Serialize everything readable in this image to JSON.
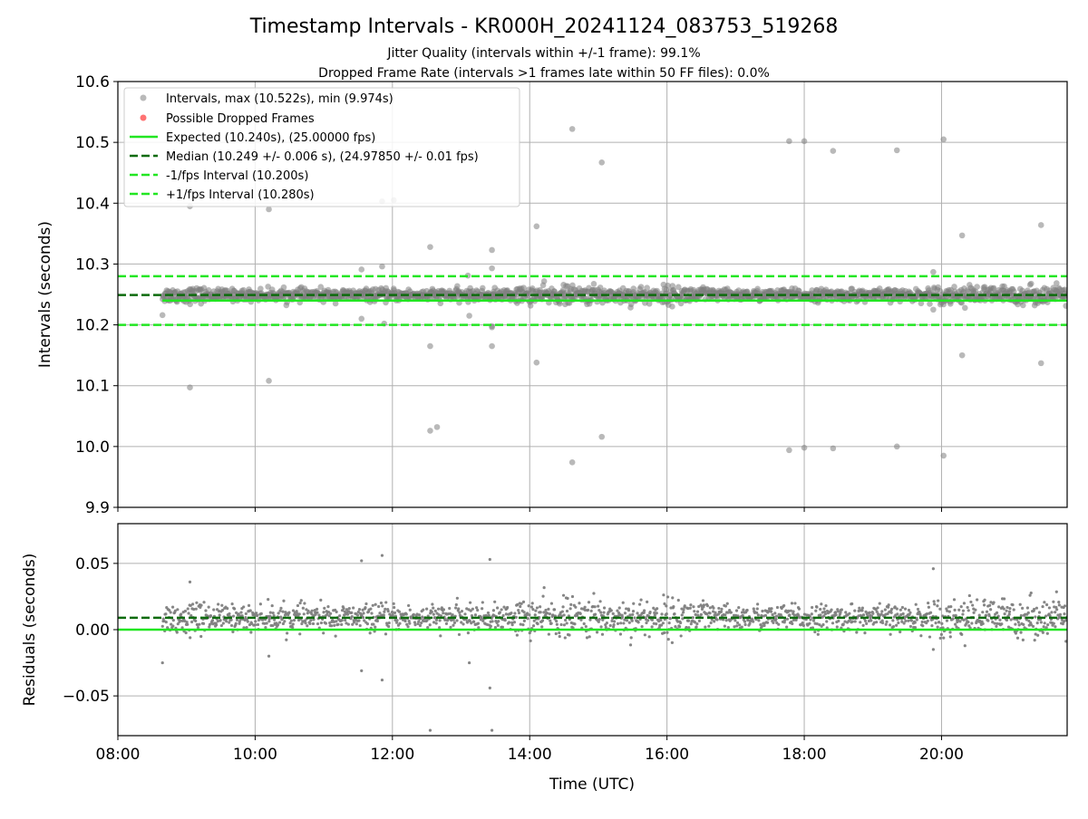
{
  "figure": {
    "title": "Timestamp Intervals - KR000H_20241124_083753_519268",
    "subtitle1": "Jitter Quality (intervals within +/-1 frame): 99.1%",
    "subtitle2": "Dropped Frame Rate (intervals >1 frames late within 50 FF files): 0.0%"
  },
  "colors": {
    "intervals": "#808080",
    "dropped": "#ff0000",
    "expected": "#22e622",
    "median": "#0d6b0d",
    "bounds": "#22e622",
    "grid": "#b0b0b0"
  },
  "chart_data": [
    {
      "type": "scatter",
      "panel": "intervals",
      "ylabel": "Intervals (seconds)",
      "xlabel": "",
      "x_unit": "time (UTC, hours)",
      "xlim": [
        8.0,
        21.83
      ],
      "ylim": [
        9.9,
        10.6
      ],
      "x_ticks": [
        "08:00",
        "10:00",
        "12:00",
        "14:00",
        "16:00",
        "18:00",
        "20:00"
      ],
      "y_ticks": [
        "9.9",
        "10.0",
        "10.1",
        "10.2",
        "10.3",
        "10.4",
        "10.5",
        "10.6"
      ],
      "grid": true,
      "legend_position": "upper-left",
      "legend": [
        "Intervals, max (10.522s), min (9.974s)",
        "Possible Dropped Frames",
        "Expected (10.240s), (25.00000 fps)",
        "Median (10.249 +/- 0.006 s), (24.97850 +/- 0.01 fps)",
        "-1/fps Interval (10.200s)",
        "+1/fps Interval (10.280s)"
      ],
      "reference_lines": {
        "expected": 10.24,
        "median": 10.249,
        "minus_1_fps": 10.2,
        "plus_1_fps": 10.28
      },
      "series": [
        {
          "name": "Intervals, max (10.522s), min (9.974s)",
          "summary": {
            "median": 10.249,
            "spread": 0.006,
            "x_start": 8.65,
            "x_end": 21.83,
            "max": 10.522,
            "min": 9.974
          }
        },
        {
          "name": "Possible Dropped Frames",
          "x": [],
          "y": []
        }
      ],
      "outliers": {
        "x": [
          9.05,
          10.2,
          11.85,
          12.02,
          12.55,
          13.45,
          14.1,
          14.62,
          15.05,
          17.78,
          18.0,
          18.42,
          19.35,
          20.03,
          20.3,
          21.45,
          9.05,
          10.2,
          11.55,
          11.88,
          12.55,
          12.65,
          13.12,
          13.45,
          13.45,
          14.1,
          15.05,
          17.78,
          18.0,
          18.42,
          19.35,
          19.88,
          20.03,
          20.3,
          21.45,
          8.65,
          11.55,
          11.85,
          13.1,
          13.45,
          13.45
        ],
        "y": [
          10.395,
          10.39,
          10.403,
          10.405,
          10.328,
          10.323,
          10.362,
          10.522,
          10.467,
          10.502,
          10.502,
          10.486,
          10.487,
          10.505,
          10.347,
          10.364,
          10.097,
          10.108,
          10.21,
          10.202,
          10.165,
          10.032,
          10.215,
          10.165,
          10.198,
          10.138,
          10.016,
          9.994,
          9.998,
          9.997,
          10.0,
          10.287,
          9.985,
          10.15,
          10.137,
          10.216,
          10.291,
          10.296,
          10.281,
          10.293,
          10.196
        ],
        "extra_low": {
          "x": [
            12.55,
            14.62
          ],
          "y": [
            10.026,
            9.974
          ]
        }
      }
    },
    {
      "type": "scatter",
      "panel": "residuals",
      "ylabel": "Residuals (seconds)",
      "xlabel": "Time (UTC)",
      "xlim": [
        8.0,
        21.83
      ],
      "ylim": [
        -0.08,
        0.08
      ],
      "x_ticks": [
        "08:00",
        "10:00",
        "12:00",
        "14:00",
        "16:00",
        "18:00",
        "20:00"
      ],
      "y_ticks": [
        "−0.05",
        "0.00",
        "0.05"
      ],
      "grid": true,
      "reference_lines": {
        "zero": 0.0,
        "median_offset": 0.009
      },
      "outliers": {
        "x": [
          11.55,
          11.85,
          13.42,
          11.55,
          11.85,
          12.55,
          13.12,
          13.42,
          13.45,
          19.88,
          8.65,
          9.05,
          10.2
        ],
        "y": [
          0.052,
          0.056,
          0.053,
          -0.031,
          -0.038,
          -0.076,
          -0.025,
          -0.044,
          -0.076,
          0.046,
          -0.025,
          0.036,
          -0.02
        ]
      }
    }
  ]
}
